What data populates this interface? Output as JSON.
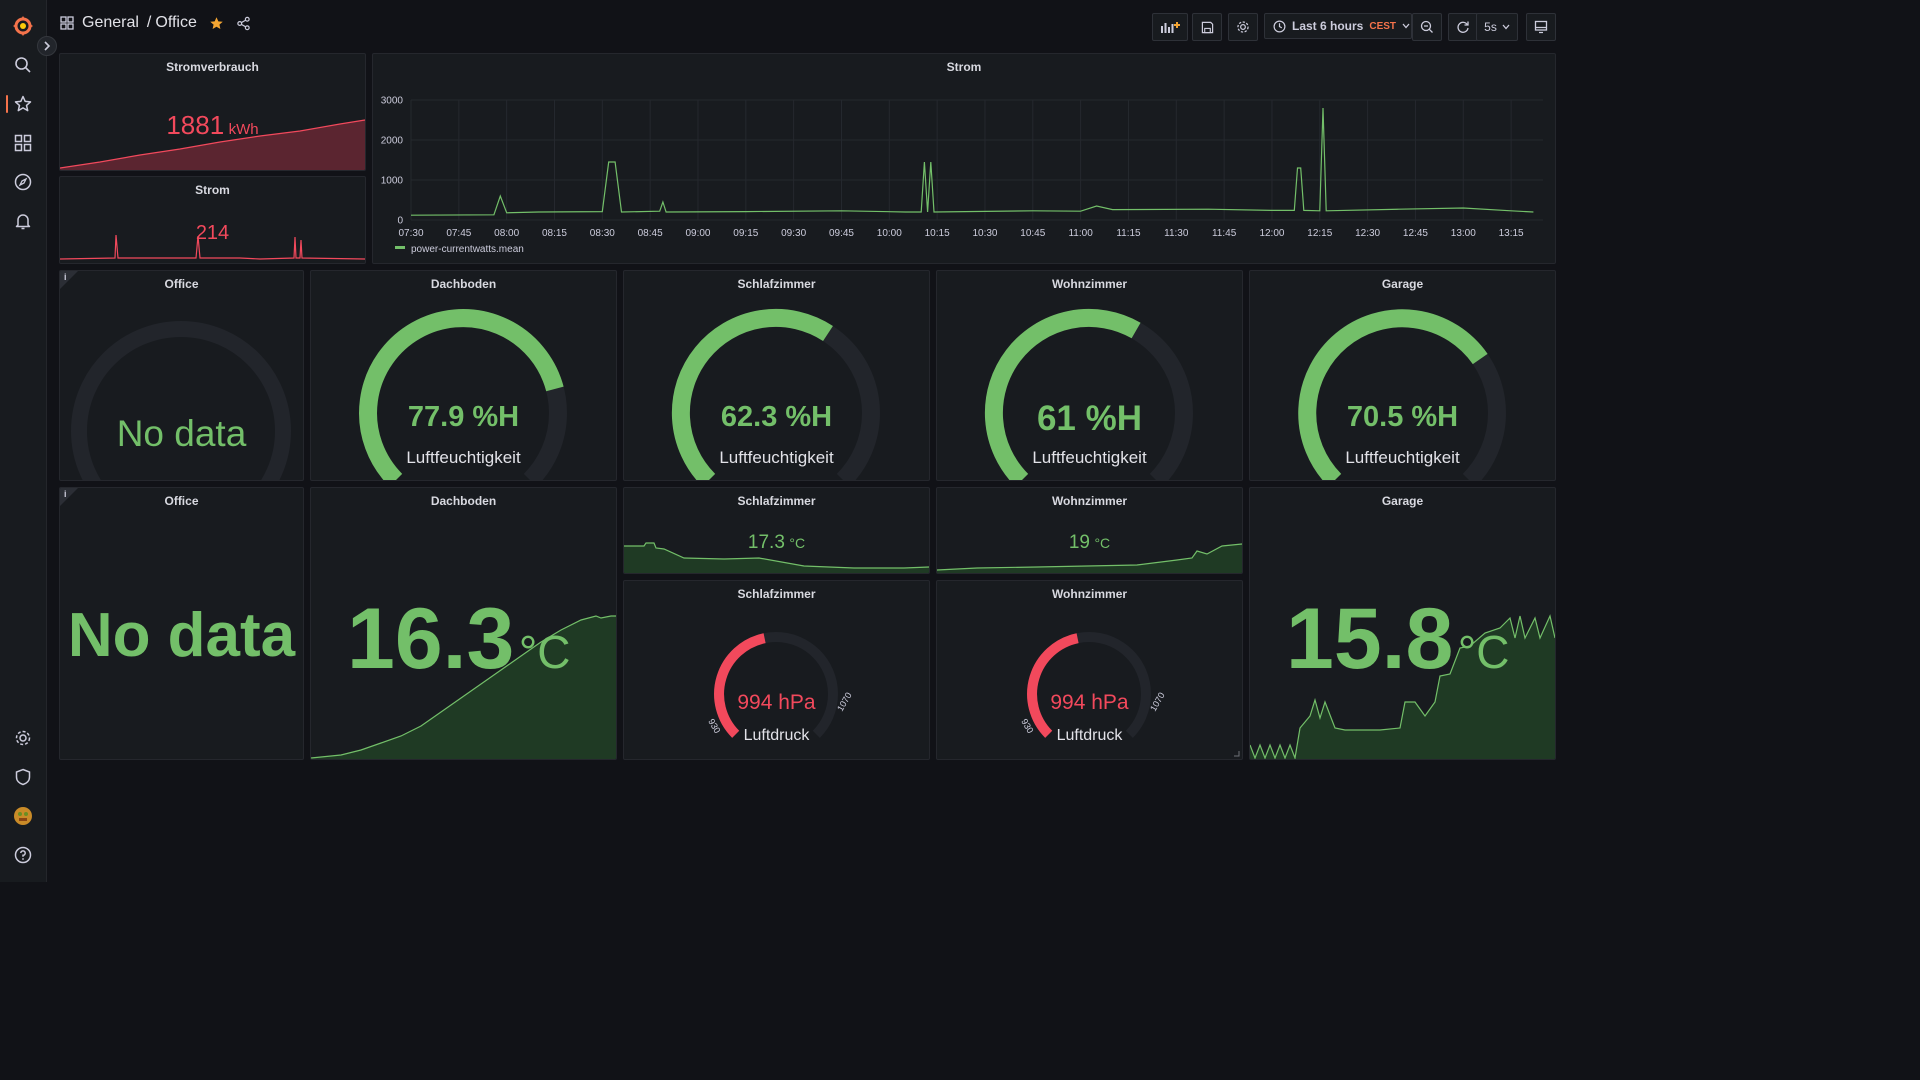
{
  "breadcrumb": {
    "folder": "General",
    "separator": "/",
    "dashboard": "Office"
  },
  "toolbar": {
    "time_range": "Last 6 hours",
    "timezone": "CEST",
    "refresh": "5s"
  },
  "panels": {
    "stromverbrauch": {
      "title": "Stromverbrauch",
      "value": "1881",
      "unit": "kWh"
    },
    "strom_small": {
      "title": "Strom",
      "value": "214"
    },
    "humidity_office": {
      "title": "Office",
      "value": "No data"
    },
    "humidity_dachboden": {
      "title": "Dachboden",
      "value": "77.9 %H",
      "label": "Luftfeuchtigkeit",
      "percent": 77.9
    },
    "humidity_schlafzimmer": {
      "title": "Schlafzimmer",
      "value": "62.3 %H",
      "label": "Luftfeuchtigkeit",
      "percent": 62.3
    },
    "humidity_wohnzimmer": {
      "title": "Wohnzimmer",
      "value": "61 %H",
      "label": "Luftfeuchtigkeit",
      "percent": 61
    },
    "humidity_garage": {
      "title": "Garage",
      "value": "70.5 %H",
      "label": "Luftfeuchtigkeit",
      "percent": 70.5
    },
    "temp_office": {
      "title": "Office",
      "value": "No data"
    },
    "temp_dachboden": {
      "title": "Dachboden",
      "value": "16.3",
      "unit": "°C"
    },
    "temp_schlafzimmer": {
      "title": "Schlafzimmer",
      "value": "17.3",
      "unit": "°C"
    },
    "temp_wohnzimmer": {
      "title": "Wohnzimmer",
      "value": "19",
      "unit": "°C"
    },
    "temp_garage": {
      "title": "Garage",
      "value": "15.8",
      "unit": "°C"
    },
    "pressure_schlafzimmer": {
      "title": "Schlafzimmer",
      "value": "994 hPa",
      "label": "Luftdruck",
      "min": "930",
      "max": "1070",
      "reading": 994
    },
    "pressure_wohnzimmer": {
      "title": "Wohnzimmer",
      "value": "994 hPa",
      "label": "Luftdruck",
      "min": "930",
      "max": "1070",
      "reading": 994
    }
  },
  "colors": {
    "green": "#73bf69",
    "red": "#f2495c",
    "accent": "#f5734b",
    "star": "#f4a532"
  },
  "chart_data": {
    "type": "line",
    "title": "Strom",
    "series": [
      {
        "name": "power-currentwatts.mean",
        "color": "#73bf69"
      }
    ],
    "x_ticks": [
      "07:30",
      "07:45",
      "08:00",
      "08:15",
      "08:30",
      "08:45",
      "09:00",
      "09:15",
      "09:30",
      "09:45",
      "10:00",
      "10:15",
      "10:30",
      "10:45",
      "11:00",
      "11:15",
      "11:30",
      "11:45",
      "12:00",
      "12:15",
      "12:30",
      "12:45",
      "13:00",
      "13:15"
    ],
    "y_ticks": [
      "0",
      "1000",
      "2000",
      "3000"
    ],
    "ylim": [
      0,
      3000
    ],
    "points": [
      [
        "07:30",
        120
      ],
      [
        "07:56",
        130
      ],
      [
        "07:58",
        600
      ],
      [
        "08:00",
        180
      ],
      [
        "08:10",
        200
      ],
      [
        "08:30",
        210
      ],
      [
        "08:32",
        1450
      ],
      [
        "08:34",
        1450
      ],
      [
        "08:36",
        200
      ],
      [
        "08:48",
        220
      ],
      [
        "08:49",
        450
      ],
      [
        "08:50",
        200
      ],
      [
        "09:15",
        210
      ],
      [
        "09:45",
        230
      ],
      [
        "10:05",
        200
      ],
      [
        "10:10",
        200
      ],
      [
        "10:11",
        1450
      ],
      [
        "10:12",
        200
      ],
      [
        "10:13",
        1450
      ],
      [
        "10:14",
        200
      ],
      [
        "10:45",
        230
      ],
      [
        "11:00",
        220
      ],
      [
        "11:05",
        350
      ],
      [
        "11:10",
        260
      ],
      [
        "11:40",
        270
      ],
      [
        "12:00",
        240
      ],
      [
        "12:07",
        240
      ],
      [
        "12:08",
        1300
      ],
      [
        "12:09",
        1300
      ],
      [
        "12:10",
        240
      ],
      [
        "12:15",
        230
      ],
      [
        "12:16",
        2800
      ],
      [
        "12:17",
        230
      ],
      [
        "12:40",
        270
      ],
      [
        "13:00",
        300
      ],
      [
        "13:15",
        230
      ],
      [
        "13:22",
        200
      ]
    ],
    "grid": true,
    "legend": "bottom-left"
  }
}
